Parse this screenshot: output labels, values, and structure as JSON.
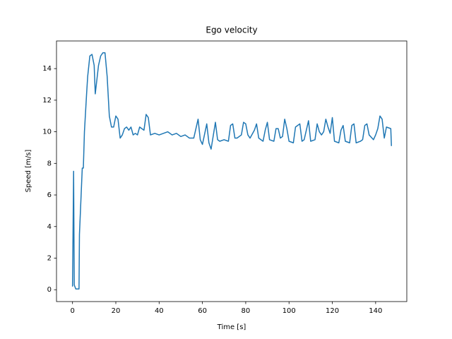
{
  "chart_data": {
    "type": "line",
    "title": "Ego velocity",
    "x_label": "Time [s]",
    "y_label": "Speed [m/s]",
    "x": [
      0,
      0.5,
      0.8,
      1.5,
      3,
      3.2,
      4.5,
      5,
      5.5,
      6.5,
      7,
      8,
      9,
      10,
      10.5,
      11,
      12,
      13,
      14,
      15,
      16,
      17,
      18,
      19,
      20,
      21,
      22,
      23,
      24,
      25,
      26,
      27,
      28,
      29,
      30,
      31,
      32,
      33,
      34,
      35,
      36,
      38,
      40,
      42,
      44,
      46,
      48,
      50,
      52,
      54,
      56,
      58,
      59,
      60,
      62,
      63,
      64,
      66,
      67,
      68,
      70,
      72,
      73,
      74,
      75,
      76,
      78,
      79,
      80,
      81,
      82,
      84,
      85,
      86,
      88,
      89,
      90,
      91,
      93,
      94,
      95,
      96,
      97,
      98,
      99,
      100,
      102,
      103,
      105,
      106,
      107,
      108,
      109,
      110,
      112,
      113,
      114,
      115,
      116,
      117,
      118,
      119,
      120,
      121,
      123,
      124,
      125,
      126,
      128,
      129,
      130,
      131,
      133,
      134,
      135,
      136,
      137,
      139,
      140,
      141,
      142,
      143,
      144,
      145,
      147,
      147.3
    ],
    "values": [
      0.2,
      7.5,
      0.3,
      0.05,
      0.05,
      3.5,
      7.7,
      7.7,
      10,
      12.4,
      13.5,
      14.8,
      14.9,
      14.2,
      12.4,
      13,
      14.2,
      14.8,
      15,
      15,
      13.5,
      11,
      10.3,
      10.3,
      11,
      10.8,
      9.6,
      9.8,
      10.2,
      10.3,
      10.1,
      10.3,
      9.8,
      9.9,
      9.8,
      10.3,
      10.2,
      10.1,
      11.1,
      10.9,
      9.8,
      9.9,
      9.8,
      9.9,
      10,
      9.8,
      9.9,
      9.7,
      9.8,
      9.6,
      9.6,
      10.8,
      9.5,
      9.2,
      10.5,
      9.3,
      8.9,
      10.6,
      9.5,
      9.4,
      9.5,
      9.4,
      10.4,
      10.5,
      9.6,
      9.6,
      9.8,
      10.6,
      10.5,
      9.8,
      9.6,
      10.1,
      10.5,
      9.6,
      9.4,
      10.1,
      10.6,
      9.5,
      9.4,
      10.2,
      10.2,
      9.6,
      9.7,
      10.8,
      10.2,
      9.4,
      9.3,
      10.3,
      10.5,
      9.4,
      9.5,
      10.1,
      10.7,
      9.4,
      9.5,
      10.5,
      10,
      9.8,
      10,
      10.8,
      10.3,
      9.9,
      10.9,
      9.4,
      9.3,
      10.1,
      10.4,
      9.4,
      9.3,
      10.4,
      10.5,
      9.3,
      9.4,
      9.5,
      10.4,
      10.5,
      9.8,
      9.5,
      9.8,
      10.2,
      11,
      10.8,
      9.6,
      10.3,
      10.2,
      9.1
    ],
    "color": "#1f77b4",
    "xlim": [
      -7.4,
      154.4
    ],
    "ylim": [
      -0.75,
      15.75
    ],
    "xticks": [
      0,
      20,
      40,
      60,
      80,
      100,
      120,
      140
    ],
    "yticks": [
      0,
      2,
      4,
      6,
      8,
      10,
      12,
      14
    ],
    "grid": false
  }
}
